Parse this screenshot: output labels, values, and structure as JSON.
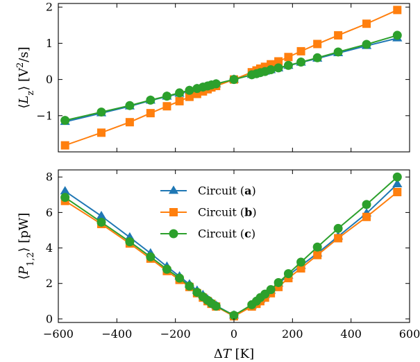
{
  "chart_data": [
    {
      "type": "line",
      "title": "",
      "xlabel": "",
      "ylabel_parts": [
        "⟨",
        "L",
        "z",
        "⟩ [V",
        "2",
        "/s]"
      ],
      "xlim": [
        -600,
        600
      ],
      "ylim": [
        -2.0,
        2.1
      ],
      "yticks": [
        -1,
        0,
        1,
        2
      ],
      "ytick_labels": [
        "−1",
        "0",
        "1",
        "2"
      ],
      "xticks": [
        -600,
        -400,
        -200,
        0,
        200,
        400,
        600
      ],
      "grid": false,
      "legend": "none",
      "series": [
        {
          "color": "#1f77b4",
          "marker": "triangle",
          "x": [
            -577,
            -453,
            -356,
            -285,
            -229,
            -186,
            -152,
            -126,
            -106,
            -90,
            -77,
            -61,
            0,
            61,
            77,
            90,
            106,
            126,
            152,
            186,
            229,
            285,
            356,
            453,
            558
          ],
          "y": [
            -1.17,
            -0.93,
            -0.74,
            -0.58,
            -0.47,
            -0.39,
            -0.31,
            -0.26,
            -0.22,
            -0.19,
            -0.16,
            -0.13,
            0.0,
            0.13,
            0.16,
            0.19,
            0.22,
            0.26,
            0.31,
            0.38,
            0.47,
            0.58,
            0.73,
            0.93,
            1.14
          ]
        },
        {
          "color": "#ff7f0e",
          "marker": "square",
          "x": [
            -577,
            -453,
            -356,
            -285,
            -229,
            -186,
            -152,
            -126,
            -106,
            -90,
            -77,
            -61,
            0,
            61,
            77,
            90,
            106,
            126,
            152,
            186,
            229,
            285,
            356,
            453,
            558
          ],
          "y": [
            -1.82,
            -1.47,
            -1.18,
            -0.93,
            -0.74,
            -0.6,
            -0.48,
            -0.4,
            -0.33,
            -0.27,
            -0.22,
            -0.18,
            0.0,
            0.2,
            0.25,
            0.3,
            0.35,
            0.42,
            0.5,
            0.62,
            0.78,
            0.98,
            1.22,
            1.54,
            1.92
          ]
        },
        {
          "color": "#2ca02c",
          "marker": "circle",
          "x": [
            -577,
            -453,
            -356,
            -285,
            -229,
            -186,
            -152,
            -126,
            -106,
            -90,
            -77,
            -61,
            0,
            61,
            77,
            90,
            106,
            126,
            152,
            186,
            229,
            285,
            356,
            453,
            558
          ],
          "y": [
            -1.13,
            -0.9,
            -0.72,
            -0.57,
            -0.46,
            -0.37,
            -0.3,
            -0.25,
            -0.21,
            -0.18,
            -0.15,
            -0.12,
            0.0,
            0.13,
            0.16,
            0.19,
            0.22,
            0.27,
            0.32,
            0.39,
            0.48,
            0.6,
            0.76,
            0.97,
            1.22
          ]
        }
      ]
    },
    {
      "type": "line",
      "title": "",
      "xlabel_parts": [
        "Δ",
        "T",
        " [K]"
      ],
      "ylabel_parts": [
        "⟨",
        "P",
        "1,2",
        "⟩ [pW]"
      ],
      "xlim": [
        -600,
        600
      ],
      "ylim": [
        -0.2,
        8.4
      ],
      "yticks": [
        0,
        2,
        4,
        6,
        8
      ],
      "ytick_labels": [
        "0",
        "2",
        "4",
        "6",
        "8"
      ],
      "xticks": [
        -600,
        -400,
        -200,
        0,
        200,
        400,
        600
      ],
      "xtick_labels": [
        "−600",
        "−400",
        "−200",
        "0",
        "200",
        "400",
        "600"
      ],
      "grid": false,
      "legend": "upper-center",
      "series": [
        {
          "name_parts": [
            "Circuit (",
            "a",
            ")"
          ],
          "color": "#1f77b4",
          "marker": "triangle",
          "x": [
            -577,
            -453,
            -356,
            -285,
            -229,
            -186,
            -152,
            -126,
            -106,
            -90,
            -77,
            -61,
            0,
            61,
            77,
            90,
            106,
            126,
            152,
            186,
            229,
            285,
            356,
            453,
            558
          ],
          "y": [
            7.2,
            5.8,
            4.6,
            3.7,
            2.95,
            2.4,
            1.95,
            1.6,
            1.35,
            1.1,
            0.95,
            0.75,
            0.2,
            0.75,
            0.95,
            1.1,
            1.35,
            1.6,
            2.0,
            2.45,
            3.0,
            3.7,
            4.65,
            5.95,
            7.6
          ]
        },
        {
          "name_parts": [
            "Circuit (",
            "b",
            ")"
          ],
          "color": "#ff7f0e",
          "marker": "square",
          "x": [
            -577,
            -453,
            -356,
            -285,
            -229,
            -186,
            -152,
            -126,
            -106,
            -90,
            -77,
            -61,
            0,
            61,
            77,
            90,
            106,
            126,
            152,
            186,
            229,
            285,
            356,
            453,
            558
          ],
          "y": [
            6.65,
            5.35,
            4.25,
            3.4,
            2.7,
            2.2,
            1.8,
            1.45,
            1.2,
            1.0,
            0.85,
            0.7,
            0.15,
            0.7,
            0.85,
            1.0,
            1.2,
            1.45,
            1.8,
            2.3,
            2.85,
            3.6,
            4.55,
            5.75,
            7.15
          ]
        },
        {
          "name_parts": [
            "Circuit (",
            "c",
            ")"
          ],
          "color": "#2ca02c",
          "marker": "circle",
          "x": [
            -577,
            -453,
            -356,
            -285,
            -229,
            -186,
            -152,
            -126,
            -106,
            -90,
            -77,
            -61,
            0,
            61,
            77,
            90,
            106,
            126,
            152,
            186,
            229,
            285,
            356,
            453,
            558
          ],
          "y": [
            6.85,
            5.45,
            4.35,
            3.5,
            2.8,
            2.3,
            1.85,
            1.5,
            1.25,
            1.05,
            0.88,
            0.72,
            0.2,
            0.8,
            1.0,
            1.2,
            1.4,
            1.65,
            2.05,
            2.55,
            3.2,
            4.05,
            5.1,
            6.45,
            8.0
          ]
        }
      ]
    }
  ]
}
